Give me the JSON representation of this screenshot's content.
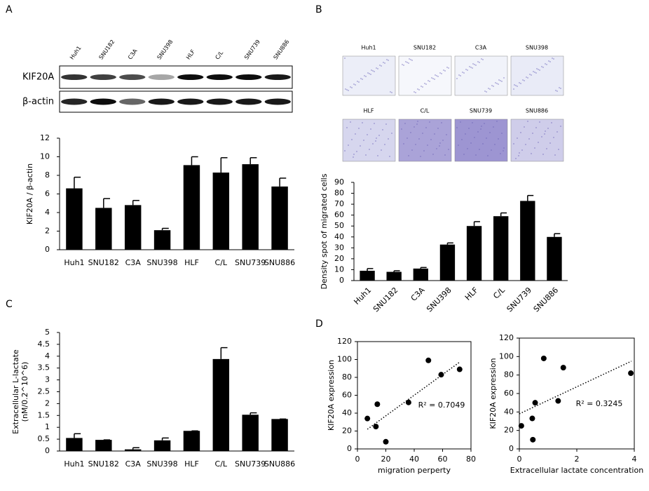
{
  "panel_labels": [
    "A",
    "B",
    "C",
    "D"
  ],
  "blot": {
    "lanes": [
      "Huh1",
      "SNU182",
      "C3A",
      "SNU398",
      "HLF",
      "C/L",
      "SNU739",
      "SNU886"
    ],
    "rows": [
      "KIF20A",
      "β-actin"
    ]
  },
  "micrographs": {
    "labels": [
      "Huh1",
      "SNU182",
      "C3A",
      "SNU398",
      "HLF",
      "C/L",
      "SNU739",
      "SNU886"
    ]
  },
  "chart_data": [
    {
      "type": "bar",
      "ylabel": [
        "KIF20A / β-actin"
      ],
      "categories": [
        "Huh1",
        "SNU182",
        "C3A",
        "SNU398",
        "HLF",
        "C/L",
        "SNU739",
        "SNU886"
      ],
      "values": [
        6.6,
        4.5,
        4.8,
        2.1,
        9.1,
        8.3,
        9.2,
        6.8
      ],
      "errors": [
        1.2,
        1.0,
        0.5,
        0.2,
        0.9,
        1.6,
        0.7,
        0.9
      ],
      "color": "#000000",
      "ylim": [
        0,
        12
      ],
      "yticks": [
        0,
        2,
        4,
        6,
        8,
        10,
        12
      ]
    },
    {
      "type": "bar",
      "ylabel": [
        "Density spot of  migrated cells"
      ],
      "categories": [
        "Huh1",
        "SNU182",
        "C3A",
        "SNU398",
        "HLF",
        "C/L",
        "SNU739",
        "SNU886"
      ],
      "values": [
        9,
        8,
        11,
        33,
        50,
        59,
        73,
        40
      ],
      "errors": [
        2,
        1,
        1,
        1.5,
        4,
        3,
        5,
        3
      ],
      "color": "#000000",
      "ylim": [
        0,
        90
      ],
      "yticks": [
        0,
        10,
        20,
        30,
        40,
        50,
        60,
        70,
        80,
        90
      ]
    },
    {
      "type": "bar",
      "ylabel": [
        "Extracellular L-lactate",
        "(nM/0.2^10^6)"
      ],
      "categories": [
        "Huh1",
        "SNU182",
        "C3A",
        "SNU398",
        "HLF",
        "C/L",
        "SNU739",
        "SNU886"
      ],
      "values": [
        0.55,
        0.47,
        0.07,
        0.45,
        0.85,
        3.88,
        1.53,
        1.35
      ],
      "errors": [
        0.18,
        0,
        0.07,
        0.1,
        0,
        0.48,
        0.08,
        0
      ],
      "color": "#000000",
      "ylim": [
        0,
        5
      ],
      "yticks": [
        0,
        0.5,
        1,
        1.5,
        2,
        2.5,
        3,
        3.5,
        4,
        4.5,
        5
      ]
    },
    {
      "type": "scatter",
      "xlabel": "migration perperty",
      "ylabel": [
        "KIF20A  expression"
      ],
      "annotation": "R² = 0.7049",
      "x": [
        7,
        14,
        13,
        20,
        36,
        50,
        59,
        72
      ],
      "y": [
        34,
        50,
        25,
        8,
        52,
        99,
        83,
        89
      ],
      "trendline": {
        "x": [
          7,
          72
        ],
        "y": [
          22,
          97
        ]
      },
      "color": "#000000",
      "xlim": [
        0,
        80
      ],
      "xticks": [
        0,
        20,
        40,
        60,
        80
      ],
      "ylim": [
        0,
        120
      ],
      "yticks": [
        0,
        20,
        40,
        60,
        80,
        100,
        120
      ]
    },
    {
      "type": "scatter",
      "xlabel": "Extracellular lactate concentration",
      "ylabel": [
        "KIF20A  expression"
      ],
      "annotation": "R² = 0.3245",
      "x": [
        0.07,
        0.45,
        0.47,
        0.55,
        0.85,
        1.35,
        1.53,
        3.88
      ],
      "y": [
        25,
        33,
        10,
        50,
        98,
        52,
        88,
        82
      ],
      "trendline": {
        "x": [
          0,
          3.9
        ],
        "y": [
          38,
          95
        ]
      },
      "color": "#000000",
      "xlim": [
        0,
        4
      ],
      "xticks": [
        0,
        2,
        4
      ],
      "ylim": [
        0,
        120
      ],
      "yticks": [
        0,
        20,
        40,
        60,
        80,
        100,
        120
      ]
    }
  ]
}
